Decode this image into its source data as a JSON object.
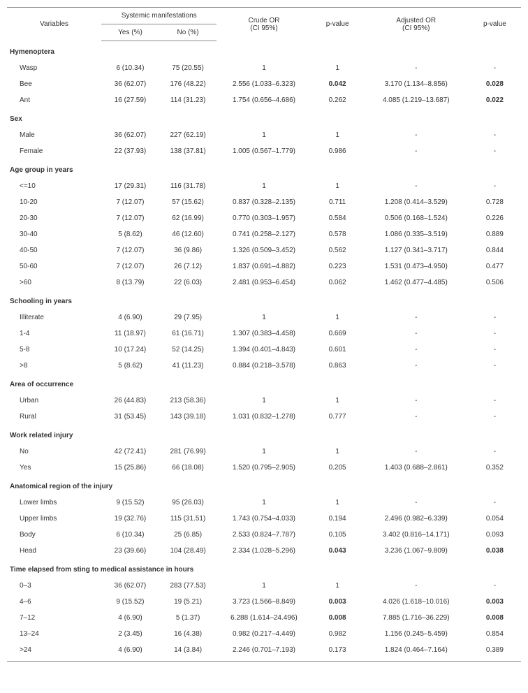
{
  "header": {
    "variables": "Variables",
    "systemic": "Systemic manifestations",
    "yes": "Yes (%)",
    "no": "No (%)",
    "crude": "Crude OR\n(CI 95%)",
    "p1": "p-value",
    "adjusted": "Adjusted OR\n(CI 95%)",
    "p2": "p-value"
  },
  "sections": [
    {
      "title": "Hymenoptera",
      "rows": [
        {
          "label": "Wasp",
          "yes": "6 (10.34)",
          "no": "75 (20.55)",
          "crude": "1",
          "p1": "1",
          "adj": "-",
          "p2": "-"
        },
        {
          "label": "Bee",
          "yes": "36 (62.07)",
          "no": "176 (48.22)",
          "crude": "2.556 (1.033–6.323)",
          "p1": "0.042",
          "p1bold": true,
          "adj": "3.170 (1.134–8.856)",
          "p2": "0.028",
          "p2bold": true
        },
        {
          "label": "Ant",
          "yes": "16 (27.59)",
          "no": "114 (31.23)",
          "crude": "1.754 (0.656–4.686)",
          "p1": "0.262",
          "adj": "4.085 (1.219–13.687)",
          "p2": "0.022",
          "p2bold": true
        }
      ]
    },
    {
      "title": "Sex",
      "rows": [
        {
          "label": "Male",
          "yes": "36 (62.07)",
          "no": "227 (62.19)",
          "crude": "1",
          "p1": "1",
          "adj": "-",
          "p2": "-"
        },
        {
          "label": "Female",
          "yes": "22 (37.93)",
          "no": "138 (37.81)",
          "crude": "1.005 (0.567–1.779)",
          "p1": "0.986",
          "adj": "-",
          "p2": "-"
        }
      ]
    },
    {
      "title": "Age group in years",
      "rows": [
        {
          "label": "<=10",
          "yes": "17 (29.31)",
          "no": "116 (31.78)",
          "crude": "1",
          "p1": "1",
          "adj": "-",
          "p2": "-"
        },
        {
          "label": "10-20",
          "yes": "7 (12.07)",
          "no": "57 (15.62)",
          "crude": "0.837 (0.328–2.135)",
          "p1": "0.711",
          "adj": "1.208 (0.414–3.529)",
          "p2": "0.728"
        },
        {
          "label": "20-30",
          "yes": "7 (12.07)",
          "no": "62 (16.99)",
          "crude": "0.770 (0.303–1.957)",
          "p1": "0.584",
          "adj": "0.506 (0.168–1.524)",
          "p2": "0.226"
        },
        {
          "label": "30-40",
          "yes": "5 (8.62)",
          "no": "46 (12.60)",
          "crude": "0.741 (0.258–2.127)",
          "p1": "0.578",
          "adj": "1.086 (0.335–3.519)",
          "p2": "0.889"
        },
        {
          "label": "40-50",
          "yes": "7 (12.07)",
          "no": "36 (9.86)",
          "crude": "1.326 (0.509–3.452)",
          "p1": "0.562",
          "adj": "1.127 (0.341–3.717)",
          "p2": "0.844"
        },
        {
          "label": "50-60",
          "yes": "7 (12.07)",
          "no": "26 (7.12)",
          "crude": "1.837 (0.691–4.882)",
          "p1": "0.223",
          "adj": "1.531 (0.473–4.950)",
          "p2": "0.477"
        },
        {
          "label": ">60",
          "yes": "8 (13.79)",
          "no": "22 (6.03)",
          "crude": "2.481 (0.953–6.454)",
          "p1": "0.062",
          "adj": "1.462 (0.477–4.485)",
          "p2": "0.506"
        }
      ]
    },
    {
      "title": "Schooling in years",
      "rows": [
        {
          "label": "Illiterate",
          "yes": "4 (6.90)",
          "no": "29 (7.95)",
          "crude": "1",
          "p1": "1",
          "adj": "-",
          "p2": "-"
        },
        {
          "label": "1-4",
          "yes": "11 (18.97)",
          "no": "61 (16.71)",
          "crude": "1.307 (0.383–4.458)",
          "p1": "0.669",
          "adj": "-",
          "p2": "-"
        },
        {
          "label": "5-8",
          "yes": "10 (17.24)",
          "no": "52 (14.25)",
          "crude": "1.394 (0.401–4.843)",
          "p1": "0.601",
          "adj": "-",
          "p2": "-"
        },
        {
          "label": ">8",
          "yes": "5 (8.62)",
          "no": "41 (11.23)",
          "crude": "0.884 (0.218–3.578)",
          "p1": "0.863",
          "adj": "-",
          "p2": "-"
        }
      ]
    },
    {
      "title": "Area of occurrence",
      "rows": [
        {
          "label": "Urban",
          "yes": "26 (44.83)",
          "no": "213 (58.36)",
          "crude": "1",
          "p1": "1",
          "adj": "-",
          "p2": "-"
        },
        {
          "label": "Rural",
          "yes": "31 (53.45)",
          "no": "143 (39.18)",
          "crude": "1.031 (0.832–1.278)",
          "p1": "0.777",
          "adj": "-",
          "p2": "-"
        }
      ]
    },
    {
      "title": "Work related injury",
      "rows": [
        {
          "label": "No",
          "yes": "42 (72.41)",
          "no": "281 (76.99)",
          "crude": "1",
          "p1": "1",
          "adj": "-",
          "p2": "-"
        },
        {
          "label": "Yes",
          "yes": "15 (25.86)",
          "no": "66 (18.08)",
          "crude": "1.520 (0.795–2.905)",
          "p1": "0.205",
          "adj": "1.403 (0.688–2.861)",
          "p2": "0.352"
        }
      ]
    },
    {
      "title": "Anatomical region of the injury",
      "rows": [
        {
          "label": "Lower limbs",
          "yes": "9 (15.52)",
          "no": "95 (26.03)",
          "crude": "1",
          "p1": "1",
          "adj": "-",
          "p2": "-"
        },
        {
          "label": "Upper limbs",
          "yes": "19 (32.76)",
          "no": "115 (31.51)",
          "crude": "1.743 (0.754–4.033)",
          "p1": "0.194",
          "adj": "2.496 (0.982–6.339)",
          "p2": "0.054"
        },
        {
          "label": "Body",
          "yes": "6 (10.34)",
          "no": "25 (6.85)",
          "crude": "2.533 (0.824–7.787)",
          "p1": "0.105",
          "adj": "3.402 (0.816–14.171)",
          "p2": "0.093"
        },
        {
          "label": "Head",
          "yes": "23 (39.66)",
          "no": "104 (28.49)",
          "crude": "2.334 (1.028–5.296)",
          "p1": "0.043",
          "p1bold": true,
          "adj": "3.236 (1.067–9.809)",
          "p2": "0.038",
          "p2bold": true
        }
      ]
    },
    {
      "title": "Time elapsed from sting to medical assistance in hours",
      "rows": [
        {
          "label": "0–3",
          "yes": "36 (62.07)",
          "no": "283 (77.53)",
          "crude": "1",
          "p1": "1",
          "adj": "-",
          "p2": "-"
        },
        {
          "label": "4–6",
          "yes": "9 (15.52)",
          "no": "19 (5.21)",
          "crude": "3.723 (1.566–8.849)",
          "p1": "0.003",
          "p1bold": true,
          "adj": "4.026 (1.618–10.016)",
          "p2": "0.003",
          "p2bold": true
        },
        {
          "label": "7–12",
          "yes": "4 (6.90)",
          "no": "5 (1.37)",
          "crude": "6.288 (1.614–24.496)",
          "p1": "0.008",
          "p1bold": true,
          "adj": "7.885 (1.716–36.229)",
          "p2": "0.008",
          "p2bold": true
        },
        {
          "label": "13–24",
          "yes": "2 (3.45)",
          "no": "16 (4.38)",
          "crude": "0.982 (0.217–4.449)",
          "p1": "0.982",
          "adj": "1.156 (0.245–5.459)",
          "p2": "0.854"
        },
        {
          "label": ">24",
          "yes": "4 (6.90)",
          "no": "14 (3.84)",
          "crude": "2.246 (0.701–7.193)",
          "p1": "0.173",
          "adj": "1.824 (0.464–7.164)",
          "p2": "0.389"
        }
      ]
    }
  ]
}
